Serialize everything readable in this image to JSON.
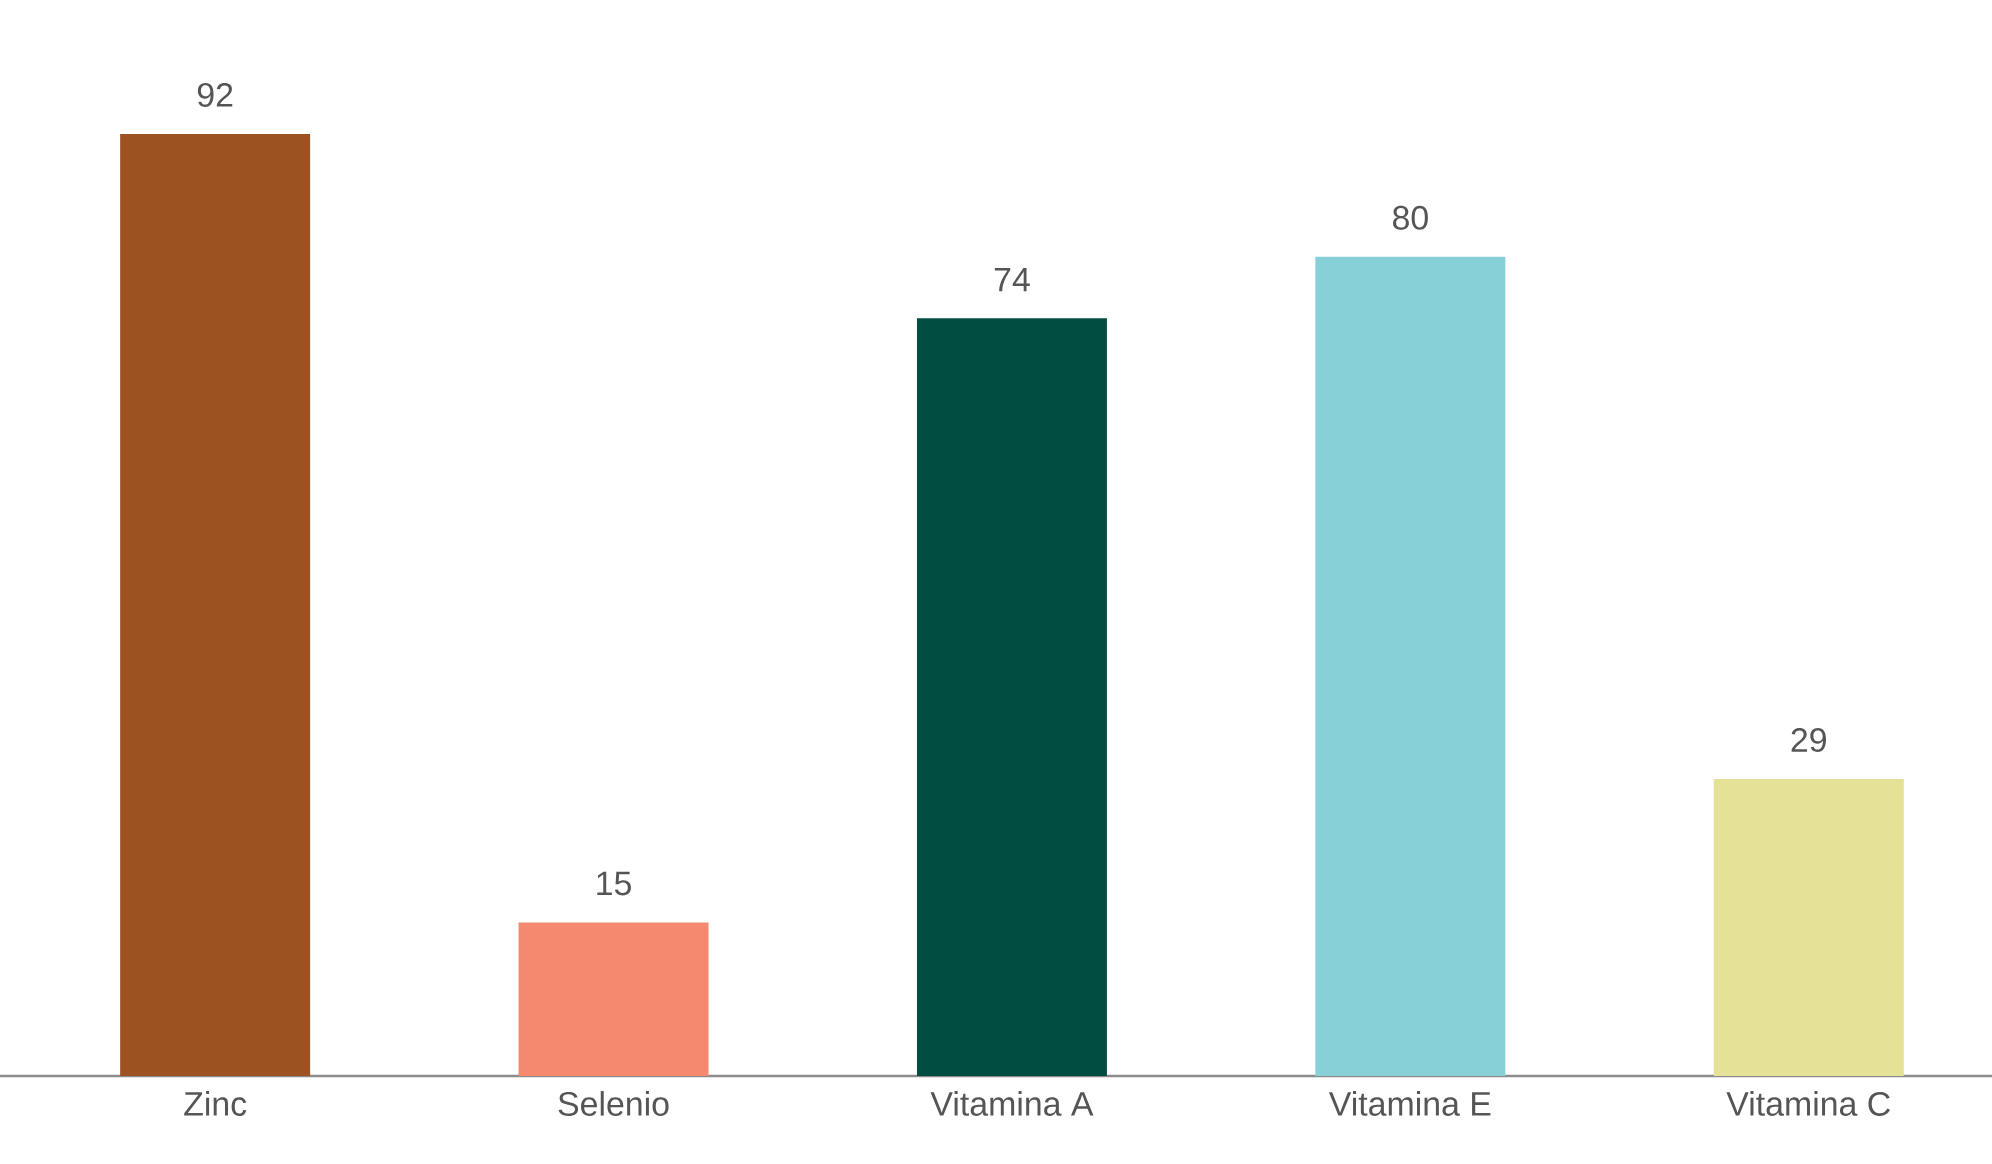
{
  "chart_data": {
    "type": "bar",
    "categories": [
      "Zinc",
      "Selenio",
      "Vitamina A",
      "Vitamina E",
      "Vitamina C"
    ],
    "values": [
      92,
      15,
      74,
      80,
      29
    ],
    "colors": [
      "#9c5221",
      "#f4896e",
      "#024d41",
      "#88d0d8",
      "#e5e196"
    ],
    "data_labels": true
  }
}
